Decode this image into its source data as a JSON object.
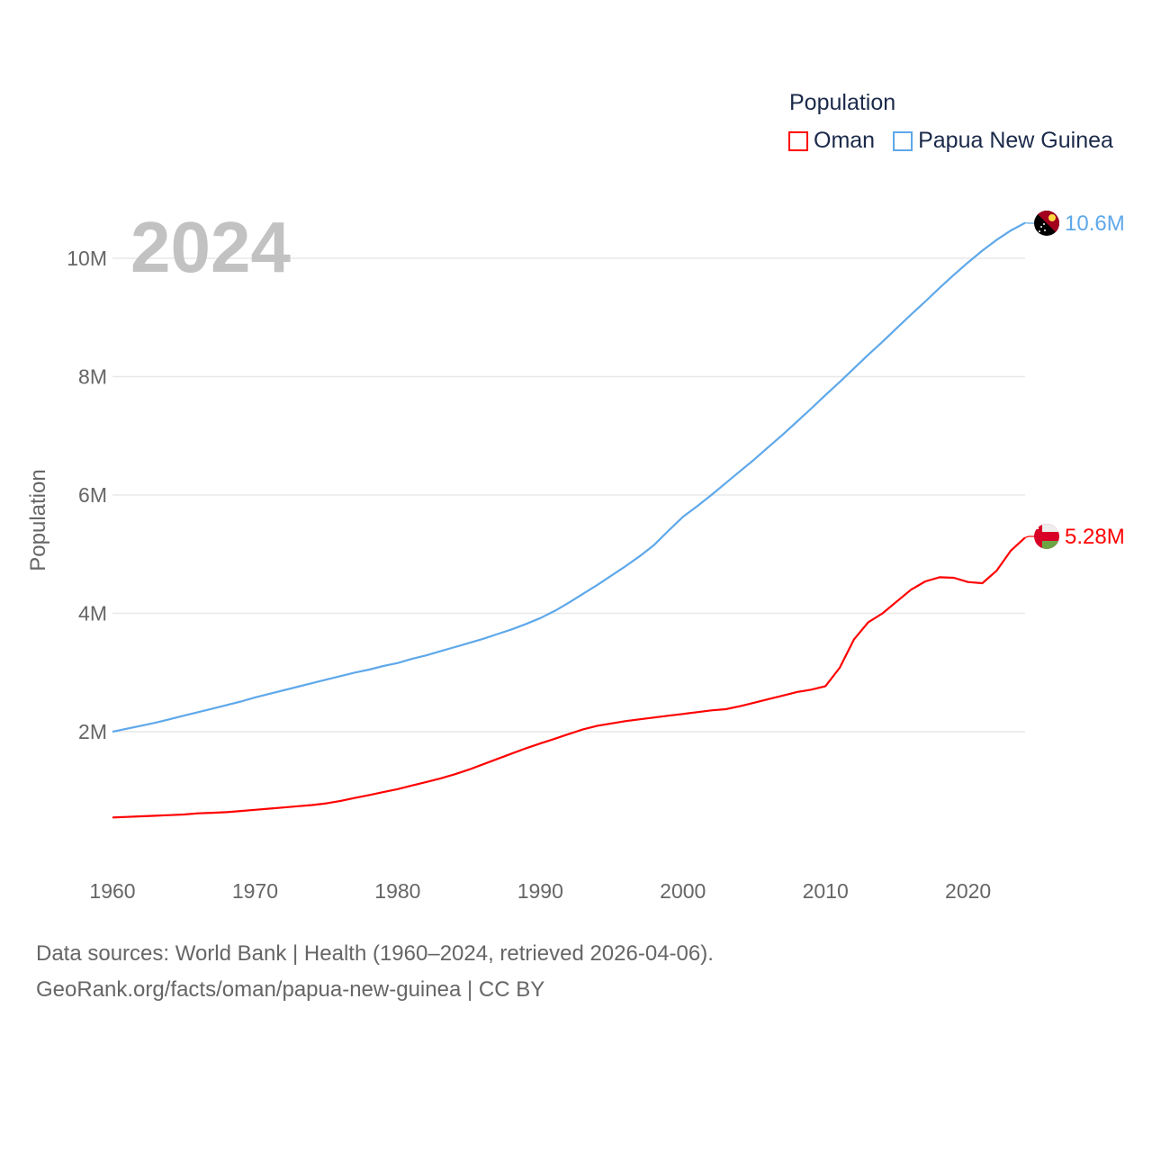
{
  "chart_data": {
    "type": "line",
    "year_label": "2024",
    "ylabel": "Population",
    "xlim": [
      1960,
      2024
    ],
    "ylim": [
      0,
      11
    ],
    "x_ticks": [
      1960,
      1970,
      1980,
      1990,
      2000,
      2010,
      2020
    ],
    "y_ticks": [
      {
        "v": 2,
        "label": "2M"
      },
      {
        "v": 4,
        "label": "4M"
      },
      {
        "v": 6,
        "label": "6M"
      },
      {
        "v": 8,
        "label": "8M"
      },
      {
        "v": 10,
        "label": "10M"
      }
    ],
    "grid": true,
    "legend": {
      "title": "Population",
      "placement": "top-right"
    },
    "units": "millions",
    "x": [
      1960,
      1961,
      1962,
      1963,
      1964,
      1965,
      1966,
      1967,
      1968,
      1969,
      1970,
      1971,
      1972,
      1973,
      1974,
      1975,
      1976,
      1977,
      1978,
      1979,
      1980,
      1981,
      1982,
      1983,
      1984,
      1985,
      1986,
      1987,
      1988,
      1989,
      1990,
      1991,
      1992,
      1993,
      1994,
      1995,
      1996,
      1997,
      1998,
      1999,
      2000,
      2001,
      2002,
      2003,
      2004,
      2005,
      2006,
      2007,
      2008,
      2009,
      2010,
      2011,
      2012,
      2013,
      2014,
      2015,
      2016,
      2017,
      2018,
      2019,
      2020,
      2021,
      2022,
      2023,
      2024
    ],
    "series": [
      {
        "name": "Oman",
        "color": "#ff0000",
        "end_label": "5.28M",
        "flag": "oman-flag",
        "values": [
          0.55,
          0.56,
          0.57,
          0.58,
          0.59,
          0.6,
          0.62,
          0.63,
          0.64,
          0.66,
          0.68,
          0.7,
          0.72,
          0.74,
          0.76,
          0.79,
          0.83,
          0.88,
          0.93,
          0.98,
          1.03,
          1.09,
          1.15,
          1.21,
          1.28,
          1.36,
          1.45,
          1.54,
          1.63,
          1.72,
          1.8,
          1.88,
          1.96,
          2.04,
          2.1,
          2.14,
          2.18,
          2.21,
          2.24,
          2.27,
          2.3,
          2.33,
          2.36,
          2.38,
          2.43,
          2.49,
          2.55,
          2.61,
          2.67,
          2.71,
          2.77,
          3.08,
          3.56,
          3.85,
          4.0,
          4.2,
          4.4,
          4.54,
          4.61,
          4.6,
          4.53,
          4.51,
          4.72,
          5.06,
          5.28
        ]
      },
      {
        "name": "Papua New Guinea",
        "color": "#5ea8ea",
        "end_label": "10.6M",
        "flag": "papua-new-guinea-flag",
        "values": [
          2.0,
          2.05,
          2.1,
          2.15,
          2.21,
          2.27,
          2.33,
          2.39,
          2.45,
          2.51,
          2.58,
          2.64,
          2.7,
          2.76,
          2.82,
          2.88,
          2.94,
          3.0,
          3.05,
          3.11,
          3.16,
          3.23,
          3.29,
          3.36,
          3.43,
          3.5,
          3.57,
          3.65,
          3.73,
          3.82,
          3.92,
          4.04,
          4.18,
          4.33,
          4.48,
          4.64,
          4.8,
          4.97,
          5.16,
          5.4,
          5.63,
          5.81,
          6.0,
          6.2,
          6.4,
          6.6,
          6.81,
          7.02,
          7.24,
          7.46,
          7.69,
          7.91,
          8.14,
          8.37,
          8.59,
          8.82,
          9.05,
          9.27,
          9.5,
          9.72,
          9.93,
          10.13,
          10.31,
          10.47,
          10.6
        ]
      }
    ]
  },
  "footer": {
    "line1": "Data sources: World Bank | Health (1960–2024, retrieved 2026-04-06).",
    "line2": "GeoRank.org/facts/oman/papua-new-guinea | CC BY"
  }
}
